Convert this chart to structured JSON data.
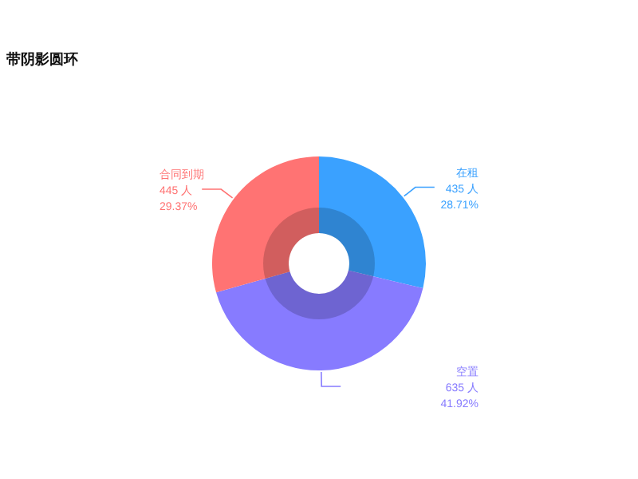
{
  "chart_data": {
    "type": "donut",
    "title": "带阴影圆环",
    "categories": [
      "在租",
      "空置",
      "合同到期"
    ],
    "values": [
      435,
      635,
      445
    ],
    "colors": [
      "#3aa1ff",
      "#877bff",
      "#ff7373"
    ],
    "value_labels": [
      "435 人\n28.71%",
      "635 人\n41.92%",
      "445 人\n29.37%"
    ]
  }
}
